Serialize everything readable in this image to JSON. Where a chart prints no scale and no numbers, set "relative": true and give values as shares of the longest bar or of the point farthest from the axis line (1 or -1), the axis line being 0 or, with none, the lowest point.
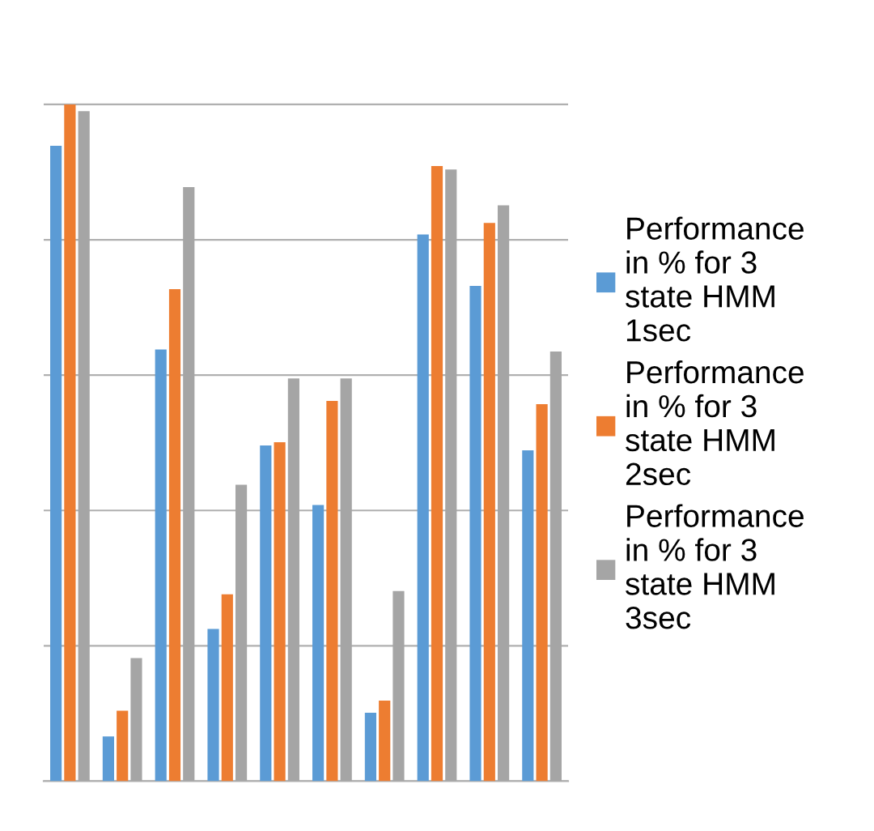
{
  "chart_data": {
    "type": "bar",
    "relative": true,
    "grid": "y",
    "legend": "right",
    "categories": [
      null,
      null,
      null,
      null,
      null,
      null,
      null,
      null,
      null,
      null
    ],
    "series": [
      {
        "name": "Performance in % for 3 state HMM 1sec",
        "color": "#5b9bd5",
        "values": [
          0.939,
          0.066,
          0.638,
          0.225,
          0.496,
          0.408,
          0.101,
          0.808,
          0.732,
          0.489
        ]
      },
      {
        "name": "Performance in % for 3 state HMM 2sec",
        "color": "#ed7d31",
        "values": [
          1.0,
          0.104,
          0.727,
          0.276,
          0.501,
          0.562,
          0.119,
          0.909,
          0.825,
          0.557
        ]
      },
      {
        "name": "Performance in % for 3 state HMM 3sec",
        "color": "#a5a5a5",
        "values": [
          0.99,
          0.182,
          0.878,
          0.438,
          0.595,
          0.595,
          0.281,
          0.904,
          0.851,
          0.635
        ]
      }
    ]
  }
}
